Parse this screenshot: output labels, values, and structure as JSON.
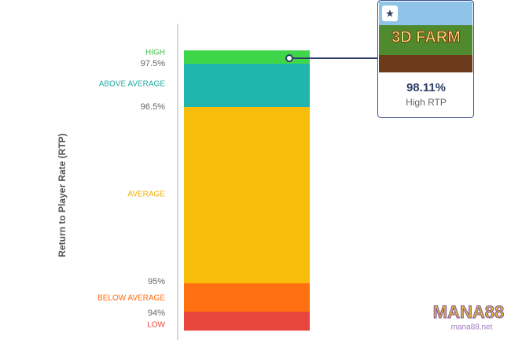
{
  "scale": {
    "axis_label": "Return to Player Rate (RTP)",
    "bands": [
      {
        "name": "HIGH"
      },
      {
        "name": "ABOVE AVERAGE"
      },
      {
        "name": "AVERAGE"
      },
      {
        "name": "BELOW AVERAGE"
      },
      {
        "name": "LOW"
      }
    ],
    "ticks": [
      "97.5%",
      "96.5%",
      "95%",
      "94%"
    ]
  },
  "card": {
    "image_title": "3D FARM",
    "value": "98.11%",
    "caption": "High RTP"
  },
  "watermark": {
    "logo": "MANA88",
    "site": "mana88.net"
  }
}
